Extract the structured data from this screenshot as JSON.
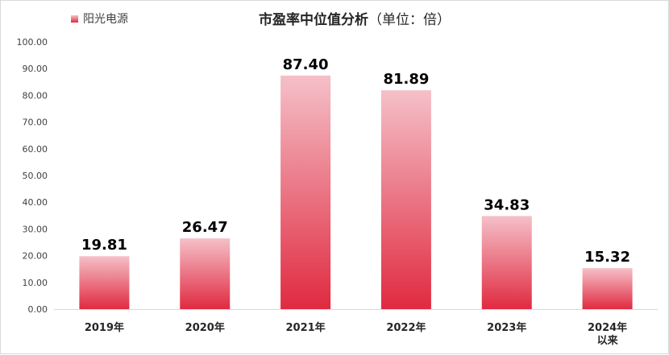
{
  "chart_data": {
    "type": "bar",
    "title": "市盈率中位值分析",
    "subtitle": "（单位：倍）",
    "categories": [
      "2019年",
      "2020年",
      "2021年",
      "2022年",
      "2023年",
      "2024年以来"
    ],
    "category_lines": [
      [
        "2019年"
      ],
      [
        "2020年"
      ],
      [
        "2021年"
      ],
      [
        "2022年"
      ],
      [
        "2023年"
      ],
      [
        "2024年",
        "以来"
      ]
    ],
    "series": [
      {
        "name": "阳光电源",
        "values": [
          19.81,
          26.47,
          87.4,
          81.89,
          34.83,
          15.32
        ]
      }
    ],
    "value_labels": [
      "19.81",
      "26.47",
      "87.40",
      "81.89",
      "34.83",
      "15.32"
    ],
    "y_ticks": [
      "0.00",
      "10.00",
      "20.00",
      "30.00",
      "40.00",
      "50.00",
      "60.00",
      "70.00",
      "80.00",
      "90.00",
      "100.00"
    ],
    "ylim": [
      0,
      100
    ],
    "grid": false,
    "legend_position": "top-left",
    "colors": {
      "bar_top": "#f5c0c8",
      "bar_bottom": "#e02a40",
      "axis": "#d9d9d9"
    }
  }
}
